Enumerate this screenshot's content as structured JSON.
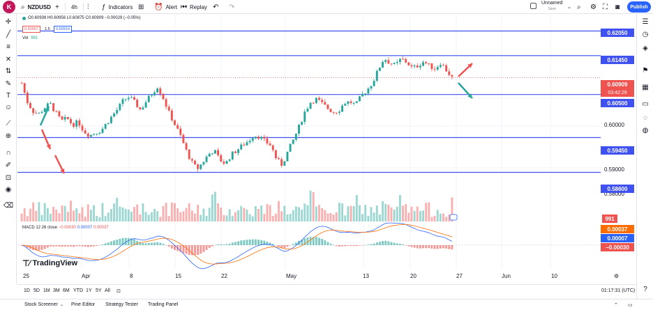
{
  "toolbar": {
    "avatar_initial": "K",
    "avatar_badge": "11",
    "symbol": "NZDUSD",
    "add_symbol": "+",
    "interval": "4h",
    "indicators_label": "Indicators",
    "alert_label": "Alert",
    "replay_label": "Replay",
    "layout_name": "Unnamed",
    "layout_save": "Save",
    "publish_label": "Publish"
  },
  "legend": {
    "symbol": "NZDUSD",
    "ohlc": "O0.60938 H0.60956 L0.60875 C0.60909 −0.00029 (−0.05%)",
    "sell_price": "0.60907",
    "spread": "1.5",
    "buy_price": "0.60919",
    "vol_label": "Vol",
    "vol_value": "991",
    "macd_label": "MACD 12 26 close",
    "macd_hist": "−0.00030",
    "macd_line": "0.00007",
    "macd_signal": "0.00037"
  },
  "price_axis": {
    "ticks": [
      "0.60000",
      "0.59000",
      "0.58000"
    ],
    "levels": [
      "0.62050",
      "0.61450",
      "0.60500",
      "0.59450",
      "0.58600"
    ],
    "current_price": "0.60909",
    "countdown": "03:42:29",
    "volume_label": "991",
    "macd_values": [
      "0.00037",
      "0.00007",
      "−0.00030"
    ]
  },
  "time_axis": [
    "25",
    "Apr",
    "8",
    "15",
    "22",
    "May",
    "13",
    "20",
    "27",
    "Jun",
    "10"
  ],
  "timeframes": [
    "1D",
    "5D",
    "1M",
    "3M",
    "6M",
    "YTD",
    "1Y",
    "5Y",
    "All"
  ],
  "clock": "01:17:31 (UTC)",
  "brand": "TradingView",
  "panel_tabs": [
    "Stock Screener",
    "Pine Editor",
    "Strategy Tester",
    "Trading Panel"
  ],
  "colors": {
    "up": "#26a69a",
    "down": "#ef5350",
    "level_line": "#3f51f0",
    "publish": "#2962ff"
  },
  "icons": {
    "left": [
      "crosshair-icon",
      "trendline-icon",
      "fib-icon",
      "pattern-icon",
      "projection-icon",
      "brush-icon",
      "text-icon",
      "emoji-icon",
      "ruler-icon",
      "zoom-icon",
      "magnet-icon",
      "lock-drawing-icon",
      "lock-icon",
      "eye-icon",
      "trash-icon"
    ],
    "right": [
      "watchlist-icon",
      "alerts-icon",
      "data-window-icon",
      "hotlist-icon",
      "calendar-icon",
      "ideas-icon",
      "chat-icon",
      "help-icon",
      "notifications-icon"
    ]
  },
  "chart_data": {
    "type": "candlestick",
    "symbol": "NZDUSD",
    "interval": "4h",
    "ylim": [
      0.582,
      0.6245
    ],
    "horizontal_levels": [
      0.6205,
      0.6145,
      0.605,
      0.5945,
      0.586
    ],
    "current_price": 0.60909,
    "closes": [
      0.6078,
      0.6032,
      0.6009,
      0.6002,
      0.6017,
      0.6028,
      0.6006,
      0.5985,
      0.5992,
      0.5976,
      0.5983,
      0.596,
      0.595,
      0.5957,
      0.5962,
      0.598,
      0.5998,
      0.6015,
      0.6037,
      0.6044,
      0.603,
      0.6012,
      0.6034,
      0.6052,
      0.607,
      0.6041,
      0.6006,
      0.5978,
      0.5951,
      0.5915,
      0.5885,
      0.5868,
      0.5885,
      0.5904,
      0.5914,
      0.589,
      0.5881,
      0.5903,
      0.5914,
      0.5926,
      0.5936,
      0.5951,
      0.5947,
      0.5935,
      0.5926,
      0.5892,
      0.5878,
      0.5911,
      0.594,
      0.5972,
      0.6008,
      0.6031,
      0.6039,
      0.6028,
      0.6017,
      0.6007,
      0.6011,
      0.603,
      0.6032,
      0.6024,
      0.6047,
      0.6061,
      0.608,
      0.6111,
      0.6139,
      0.6127,
      0.6121,
      0.6137,
      0.6129,
      0.6114,
      0.6121,
      0.6131,
      0.612,
      0.6113,
      0.6128,
      0.6109,
      0.60909
    ],
    "volume_max": 991,
    "macd": {
      "macd": 7e-05,
      "signal": 0.00037,
      "histogram": -0.0003
    }
  }
}
